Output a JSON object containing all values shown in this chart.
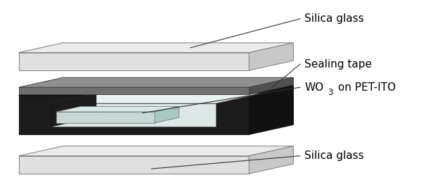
{
  "fig_width": 6.33,
  "fig_height": 2.56,
  "dpi": 100,
  "bg_color": "#ffffff",
  "labels": {
    "silica_top": "Silica glass",
    "sealing_tape": "Sealing tape",
    "wo3_prefix": "WO",
    "wo3_sub": "3",
    "wo3_suffix": " on PET-ITO",
    "silica_bottom": "Silica glass"
  },
  "colors": {
    "silica_face": "#e0e0e0",
    "silica_top_face": "#ebebeb",
    "silica_right": "#c8c8c8",
    "silica_edge": "#888888",
    "black_frame": "#1c1c1c",
    "black_right": "#111111",
    "black_top": "#2a2a2a",
    "inner_floor": "#dde8e6",
    "inner_floor_top": "#e8f2f0",
    "sealing_face": "#707070",
    "sealing_top": "#909090",
    "sealing_right": "#505050",
    "wo3_face": "#c5d8d4",
    "wo3_top": "#d8eae8",
    "wo3_right": "#a8c8c4"
  },
  "anno_line_color": "#333333",
  "anno_fontsize": 11,
  "anno_sub_fontsize": 8.5
}
